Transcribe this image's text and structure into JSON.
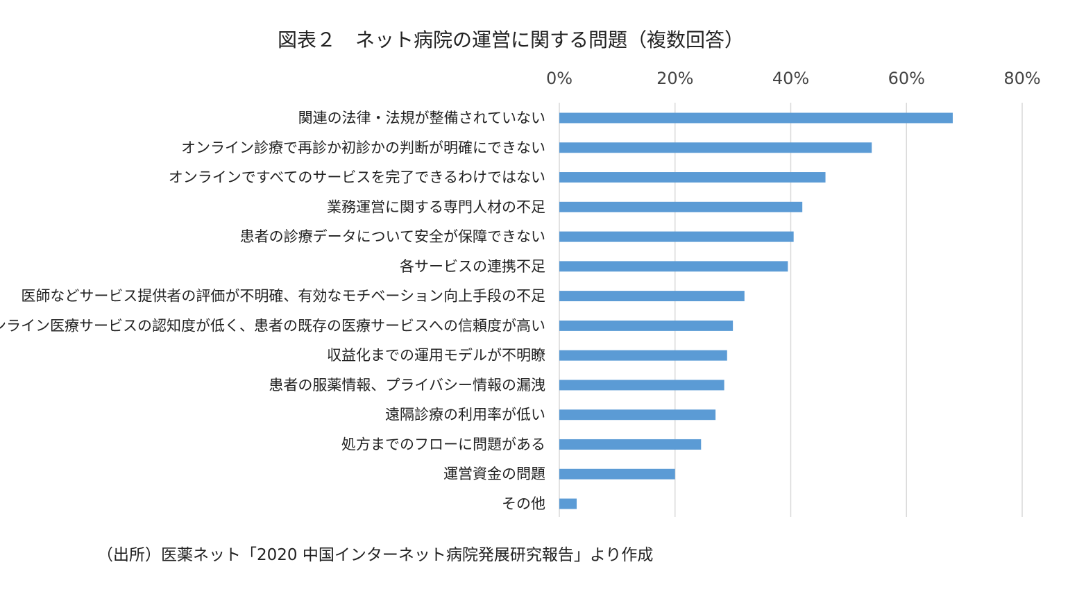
{
  "chart_data": {
    "type": "bar",
    "orientation": "horizontal",
    "title": "図表２　ネット病院の運営に関する問題（複数回答）",
    "source": "（出所）医薬ネット「2020 中国インターネット病院発展研究報告」より作成",
    "categories": [
      "関連の法律・法規が整備されていない",
      "オンライン診療で再診か初診かの判断が明確にできない",
      "オンラインですべてのサービスを完了できるわけではない",
      "業務運営に関する専門人材の不足",
      "患者の診療データについて安全が保障できない",
      "各サービスの連携不足",
      "医師などサービス提供者の評価が不明確、有効なモチベーション向上手段の不足",
      "オンライン医療サービスの認知度が低く、患者の既存の医療サービスへの信頼度が高い",
      "収益化までの運用モデルが不明瞭",
      "患者の服薬情報、プライバシー情報の漏洩",
      "遠隔診療の利用率が低い",
      "処方までのフローに問題がある",
      "運営資金の問題",
      "その他"
    ],
    "values": [
      68,
      54,
      46,
      42,
      40.5,
      39.5,
      32,
      30,
      29,
      28.5,
      27,
      24.5,
      20,
      3
    ],
    "unit": "%",
    "xlim": [
      0,
      80
    ],
    "x_ticks": [
      "0%",
      "20%",
      "40%",
      "60%",
      "80%"
    ],
    "x_tick_values": [
      0,
      20,
      40,
      60,
      80
    ],
    "xaxis_position": "top",
    "grid": true,
    "legend": "none",
    "bar_color": "#5b9bd5",
    "grid_color": "#d9d9d9"
  }
}
